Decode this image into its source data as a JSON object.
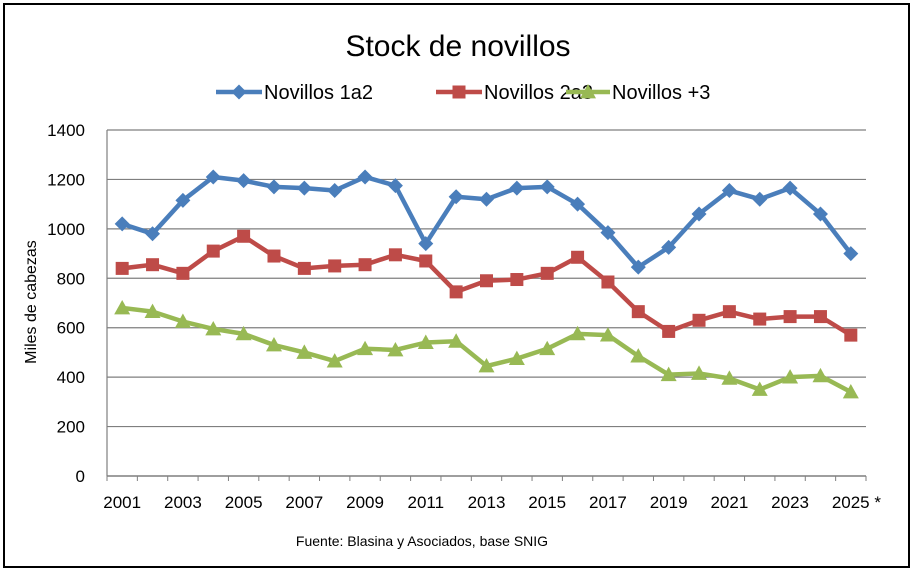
{
  "chart_data": {
    "type": "line",
    "title": "Stock de novillos",
    "xlabel": "",
    "ylabel": "Miles de cabezas",
    "ylim": [
      0,
      1400
    ],
    "ytick_step": 200,
    "x": [
      2001,
      2002,
      2003,
      2004,
      2005,
      2006,
      2007,
      2008,
      2009,
      2010,
      2011,
      2012,
      2013,
      2014,
      2015,
      2016,
      2017,
      2018,
      2019,
      2020,
      2021,
      2022,
      2023,
      2024,
      2025
    ],
    "x_tick_labels": [
      "2001",
      "2003",
      "2005",
      "2007",
      "2009",
      "2011",
      "2013",
      "2015",
      "2017",
      "2019",
      "2021",
      "2023",
      "2025 *"
    ],
    "y_tick_labels": [
      "0",
      "200",
      "400",
      "600",
      "800",
      "1000",
      "1200",
      "1400"
    ],
    "grid": true,
    "legend_position": "top",
    "series": [
      {
        "name": "Novillos 1a2",
        "color": "#4a7ebb",
        "marker": "diamond",
        "values": [
          1020,
          980,
          1115,
          1210,
          1195,
          1170,
          1165,
          1155,
          1210,
          1175,
          940,
          1130,
          1120,
          1165,
          1170,
          1100,
          985,
          845,
          925,
          1060,
          1155,
          1120,
          1165,
          1060,
          900
        ]
      },
      {
        "name": "Novillos 2a3",
        "color": "#be4b48",
        "marker": "square",
        "values": [
          840,
          855,
          820,
          910,
          970,
          890,
          840,
          850,
          855,
          895,
          870,
          745,
          790,
          795,
          820,
          885,
          785,
          665,
          585,
          630,
          665,
          635,
          645,
          645,
          570
        ]
      },
      {
        "name": "Novillos +3",
        "color": "#98b954",
        "marker": "triangle",
        "values": [
          680,
          665,
          625,
          595,
          575,
          530,
          500,
          465,
          515,
          510,
          540,
          545,
          445,
          475,
          515,
          575,
          570,
          485,
          410,
          415,
          395,
          350,
          400,
          405,
          340
        ]
      }
    ],
    "source_note": "Fuente: Blasina y Asociados, base SNIG"
  }
}
